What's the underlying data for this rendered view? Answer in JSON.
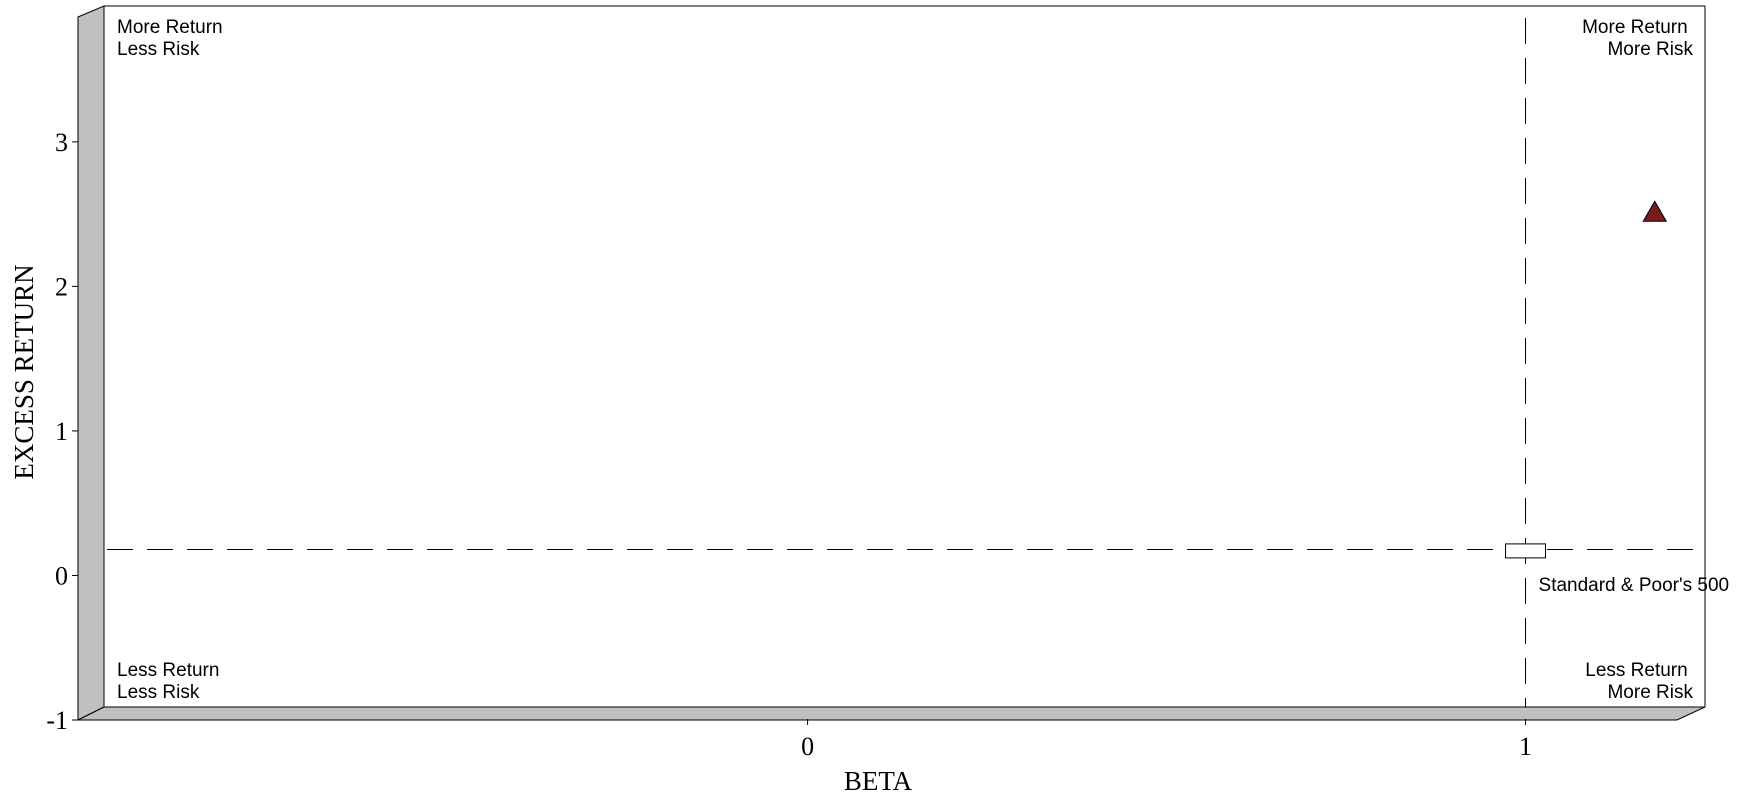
{
  "chart_data": {
    "type": "scatter",
    "xlabel": "BETA",
    "ylabel": "EXCESS RETURN",
    "xlim": [
      -0.98,
      1.25
    ],
    "ylim": [
      -1,
      3.85
    ],
    "x_ticks": [
      {
        "value": 0,
        "label": "0"
      },
      {
        "value": 1,
        "label": "1"
      }
    ],
    "y_ticks": [
      {
        "value": -1,
        "label": "-1"
      },
      {
        "value": 0,
        "label": "0"
      },
      {
        "value": 1,
        "label": "1"
      },
      {
        "value": 2,
        "label": "2"
      },
      {
        "value": 3,
        "label": "3"
      }
    ],
    "reference_lines": {
      "x": 1.0,
      "y": 0.09
    },
    "quadrant_labels": {
      "top_left": [
        "More Return",
        "Less Risk"
      ],
      "top_right": [
        "More Return",
        "More Risk"
      ],
      "bottom_left": [
        "Less Return",
        "Less Risk"
      ],
      "bottom_right": [
        "Less Return",
        "More Risk"
      ]
    },
    "series": [
      {
        "marker": "triangle",
        "color": "#7a1a1f",
        "points": [
          {
            "x": 1.18,
            "y": 2.43
          }
        ]
      },
      {
        "name": "Standard & Poor's 500",
        "marker": "rectangle",
        "color": "#ffffff",
        "points": [
          {
            "x": 1.0,
            "y": 0.08
          }
        ]
      }
    ],
    "grid": false,
    "wall_color": "#c0c0c0"
  }
}
